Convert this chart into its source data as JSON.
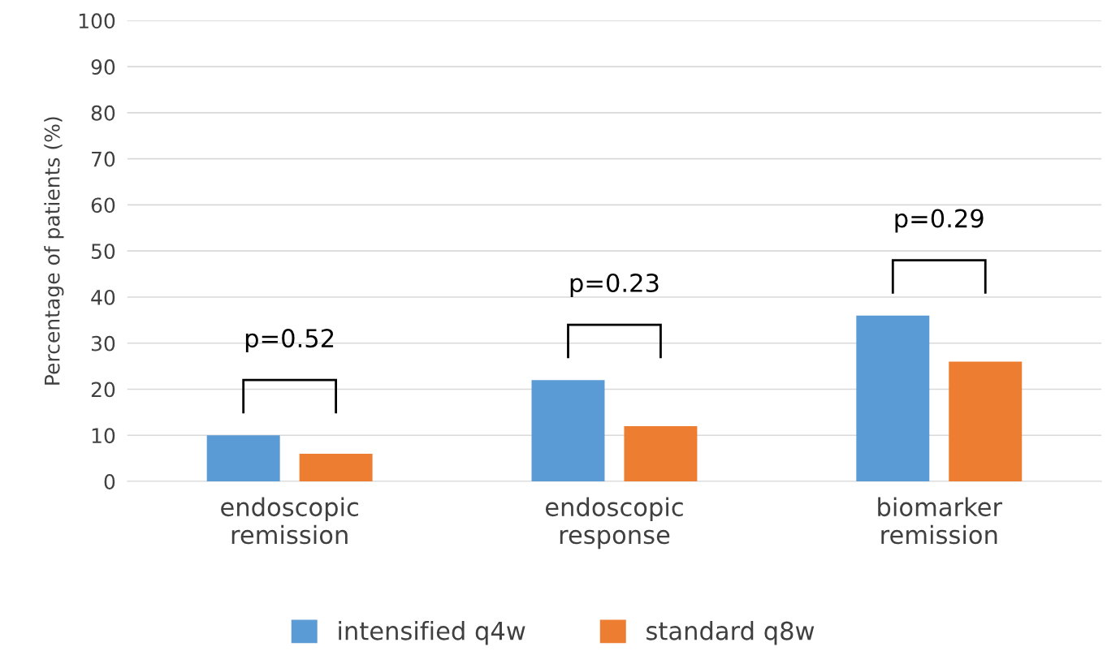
{
  "chart_data": {
    "type": "bar",
    "ylabel": "Percentage of patients (%)",
    "categories": [
      "endoscopic\nremission",
      "endoscopic\nresponse",
      "biomarker\nremission"
    ],
    "series": [
      {
        "name": "intensified q4w",
        "color": "#5b9bd5",
        "values": [
          10,
          22,
          36
        ]
      },
      {
        "name": "standard q8w",
        "color": "#ed7d31",
        "values": [
          6,
          12,
          26
        ]
      }
    ],
    "ylim": [
      0,
      100
    ],
    "yticks": [
      0,
      10,
      20,
      30,
      40,
      50,
      60,
      70,
      80,
      90,
      100
    ],
    "grid": "y",
    "legend": "bottom",
    "annotations": [
      "p=0.52",
      "p=0.23",
      "p=0.29"
    ]
  }
}
